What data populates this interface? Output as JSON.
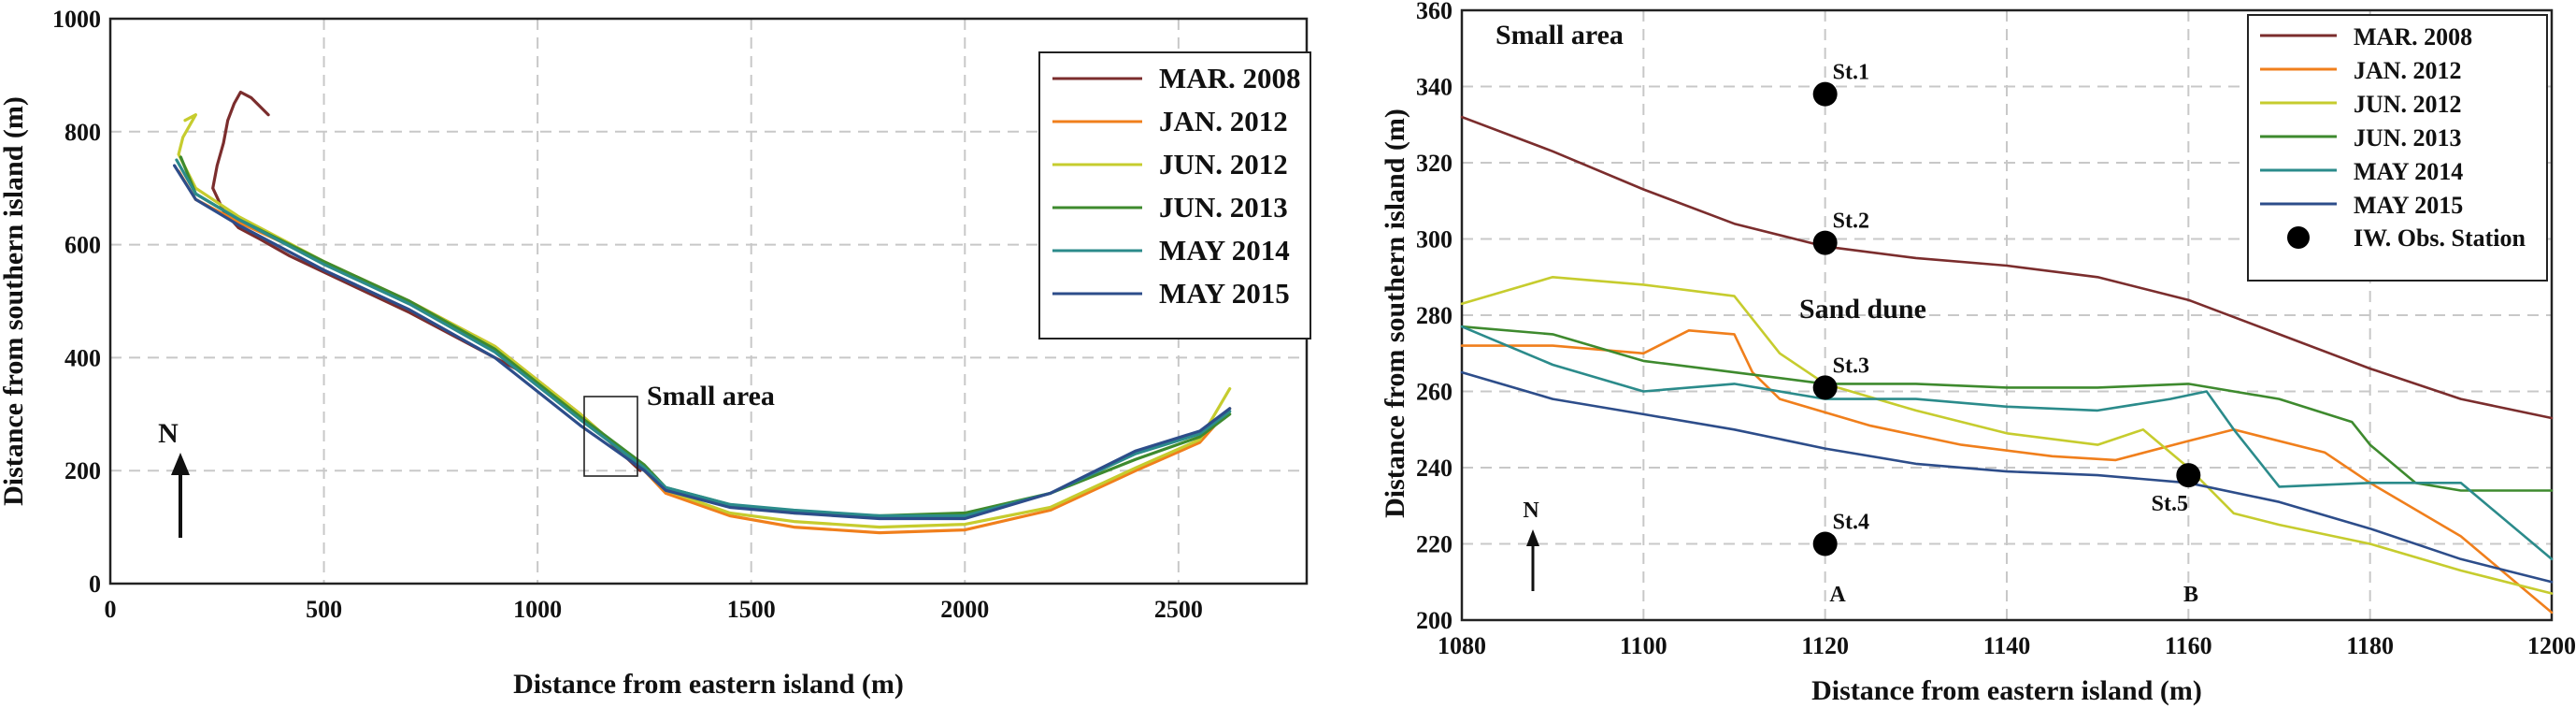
{
  "chart_data": [
    {
      "type": "line",
      "xlabel": "Distance from eastern island (m)",
      "ylabel": "Distance from southern island (m)",
      "xlim": [
        0,
        2800
      ],
      "ylim": [
        0,
        1000
      ],
      "xticks": [
        "0",
        "500",
        "1000",
        "1500",
        "2000",
        "2500"
      ],
      "yticks": [
        "0",
        "200",
        "400",
        "600",
        "800",
        "1000"
      ],
      "legend_position": "top-right",
      "annotations": {
        "small_area": "Small area",
        "north": "N"
      },
      "series": [
        {
          "name": "MAR. 2008",
          "color": "#7b2d2d",
          "x": [
            370,
            330,
            305,
            290,
            275,
            265,
            250,
            240,
            265,
            300,
            350,
            420,
            560,
            700,
            850,
            1000,
            1100,
            1170,
            1240
          ],
          "y": [
            830,
            860,
            870,
            850,
            820,
            780,
            740,
            700,
            660,
            630,
            610,
            580,
            530,
            480,
            420,
            360,
            300,
            250,
            200
          ]
        },
        {
          "name": "JAN. 2012",
          "color": "#f07f1c",
          "x": [
            160,
            200,
            300,
            500,
            700,
            900,
            1100,
            1250,
            1300,
            1450,
            1600,
            1800,
            2000,
            2200,
            2400,
            2550,
            2620
          ],
          "y": [
            730,
            680,
            640,
            570,
            500,
            420,
            300,
            200,
            160,
            120,
            100,
            90,
            95,
            130,
            200,
            250,
            310
          ]
        },
        {
          "name": "JUN. 2012",
          "color": "#c6cc2e",
          "x": [
            175,
            200,
            170,
            160,
            200,
            300,
            500,
            700,
            900,
            1100,
            1250,
            1300,
            1450,
            1600,
            1800,
            2000,
            2200,
            2400,
            2550,
            2620
          ],
          "y": [
            820,
            830,
            790,
            760,
            700,
            650,
            570,
            500,
            420,
            300,
            200,
            165,
            125,
            110,
            100,
            105,
            135,
            205,
            255,
            345
          ]
        },
        {
          "name": "JUN. 2013",
          "color": "#3e8a2e",
          "x": [
            165,
            200,
            300,
            500,
            700,
            900,
            1100,
            1250,
            1300,
            1450,
            1600,
            1800,
            2000,
            2200,
            2400,
            2550,
            2620
          ],
          "y": [
            755,
            690,
            645,
            570,
            500,
            415,
            295,
            210,
            170,
            140,
            125,
            120,
            125,
            160,
            220,
            260,
            300
          ]
        },
        {
          "name": "MAY 2014",
          "color": "#2b8b8b",
          "x": [
            155,
            200,
            300,
            500,
            700,
            900,
            1100,
            1250,
            1300,
            1450,
            1600,
            1800,
            2000,
            2200,
            2400,
            2550,
            2620
          ],
          "y": [
            750,
            690,
            645,
            565,
            495,
            410,
            290,
            205,
            170,
            140,
            130,
            120,
            120,
            160,
            230,
            265,
            305
          ]
        },
        {
          "name": "MAY 2015",
          "color": "#2d4d8a",
          "x": [
            150,
            200,
            300,
            500,
            700,
            900,
            1100,
            1250,
            1300,
            1450,
            1600,
            1800,
            2000,
            2200,
            2400,
            2550,
            2620
          ],
          "y": [
            740,
            680,
            635,
            555,
            485,
            400,
            280,
            200,
            165,
            135,
            125,
            115,
            115,
            160,
            235,
            270,
            310
          ]
        }
      ]
    },
    {
      "type": "line",
      "title": "Small area",
      "xlabel": "Distance from eastern island (m)",
      "ylabel": "Distance from southern island (m)",
      "xlim": [
        1080,
        1200
      ],
      "ylim": [
        200,
        360
      ],
      "xticks": [
        "1080",
        "1100",
        "1120",
        "1140",
        "1160",
        "1180",
        "1200"
      ],
      "yticks": [
        "200",
        "220",
        "240",
        "260",
        "280",
        "300",
        "320",
        "340",
        "360"
      ],
      "legend_position": "top-right",
      "annotations": {
        "sand_dune": "Sand dune",
        "label_a": "A",
        "label_b": "B",
        "north": "N"
      },
      "stations_legend": "IW. Obs. Station",
      "stations": [
        {
          "name": "St.1",
          "x": 1120,
          "y": 338
        },
        {
          "name": "St.2",
          "x": 1120,
          "y": 299
        },
        {
          "name": "St.3",
          "x": 1120,
          "y": 261
        },
        {
          "name": "St.4",
          "x": 1120,
          "y": 220
        },
        {
          "name": "St.5",
          "x": 1160,
          "y": 238
        }
      ],
      "series": [
        {
          "name": "MAR. 2008",
          "color": "#7b2d2d",
          "x": [
            1080,
            1090,
            1100,
            1110,
            1120,
            1130,
            1140,
            1150,
            1160,
            1170,
            1180,
            1190,
            1200
          ],
          "y": [
            332,
            323,
            313,
            304,
            298,
            295,
            293,
            290,
            284,
            275,
            266,
            258,
            253
          ]
        },
        {
          "name": "JAN. 2012",
          "color": "#f07f1c",
          "x": [
            1080,
            1090,
            1100,
            1105,
            1110,
            1112,
            1115,
            1125,
            1135,
            1145,
            1152,
            1160,
            1165,
            1175,
            1180,
            1190,
            1200
          ],
          "y": [
            272,
            272,
            270,
            276,
            275,
            265,
            258,
            251,
            246,
            243,
            242,
            247,
            250,
            244,
            236,
            222,
            202
          ]
        },
        {
          "name": "JUN. 2012",
          "color": "#c6cc2e",
          "x": [
            1080,
            1090,
            1100,
            1110,
            1115,
            1120,
            1130,
            1140,
            1150,
            1155,
            1160,
            1165,
            1170,
            1180,
            1190,
            1200
          ],
          "y": [
            283,
            290,
            288,
            285,
            270,
            262,
            255,
            249,
            246,
            250,
            240,
            228,
            225,
            220,
            213,
            207
          ]
        },
        {
          "name": "JUN. 2013",
          "color": "#3e8a2e",
          "x": [
            1080,
            1090,
            1100,
            1110,
            1120,
            1130,
            1140,
            1150,
            1160,
            1170,
            1178,
            1180,
            1185,
            1190,
            1200
          ],
          "y": [
            277,
            275,
            268,
            265,
            262,
            262,
            261,
            261,
            262,
            258,
            252,
            246,
            236,
            234,
            234
          ]
        },
        {
          "name": "MAY 2014",
          "color": "#2b8b8b",
          "x": [
            1080,
            1090,
            1100,
            1110,
            1120,
            1130,
            1140,
            1150,
            1158,
            1162,
            1165,
            1170,
            1180,
            1190,
            1200
          ],
          "y": [
            277,
            267,
            260,
            262,
            258,
            258,
            256,
            255,
            258,
            260,
            250,
            235,
            236,
            236,
            216
          ]
        },
        {
          "name": "MAY 2015",
          "color": "#2d4d8a",
          "x": [
            1080,
            1090,
            1100,
            1110,
            1120,
            1130,
            1140,
            1150,
            1160,
            1170,
            1180,
            1190,
            1200
          ],
          "y": [
            265,
            258,
            254,
            250,
            245,
            241,
            239,
            238,
            236,
            231,
            224,
            216,
            210
          ]
        }
      ]
    }
  ]
}
